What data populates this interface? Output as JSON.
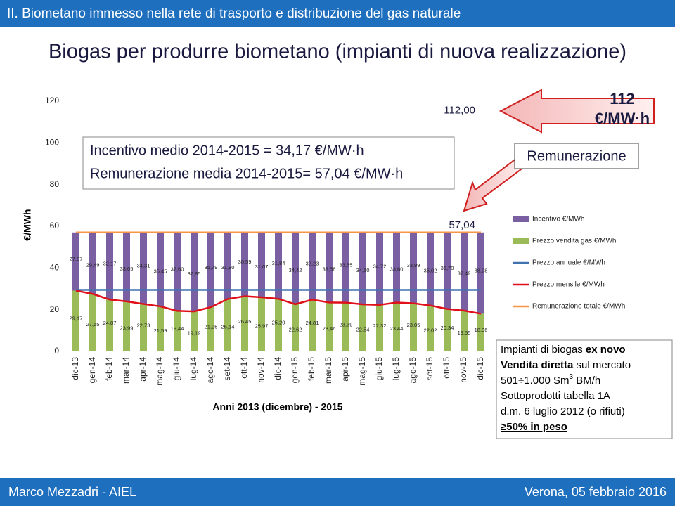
{
  "slide": {
    "header": "II. Biometano immesso nella rete di trasporto e distribuzione del gas naturale",
    "title": "Biogas per produrre biometano (impianti di nuova realizzazione)",
    "footer_left": "Marco Mezzadri - AIEL",
    "footer_right": "Verona, 05 febbraio 2016",
    "callout_value": "112",
    "callout_unit": "€/MW·h",
    "callout_box": "Remunerazione",
    "info_line1": "Incentivo medio 2014-2015 = 34,17 €/MW·h",
    "info_line2": "Remunerazione media 2014-2015= 57,04 €/MW·h",
    "note": [
      [
        "Impianti di biogas ",
        "ex novo"
      ],
      [
        "Vendita diretta",
        " sul mercato"
      ],
      [
        "501÷1.000 Sm",
        "3",
        " BM/h"
      ],
      [
        "Sottoprodotti tabella 1A"
      ],
      [
        "d.m. 6 luglio 2012 (o rifiuti)"
      ],
      [
        "≥50% in peso"
      ]
    ]
  },
  "chart_data": {
    "type": "bar",
    "ylabel": "€/MWh",
    "xlabel": "Anni 2013 (dicembre) - 2015",
    "ylim": [
      0,
      120
    ],
    "yticks": [
      0,
      20,
      40,
      60,
      80,
      100,
      120
    ],
    "categories": [
      "dic-13",
      "gen-14",
      "feb-14",
      "mar-14",
      "apr-14",
      "mag-14",
      "giu-14",
      "lug-14",
      "ago-14",
      "set-14",
      "ott-14",
      "nov-14",
      "dic-14",
      "gen-15",
      "feb-15",
      "mar-15",
      "apr-15",
      "mag-15",
      "giu-15",
      "lug-15",
      "ago-15",
      "set-15",
      "ott-15",
      "nov-15",
      "dic-15"
    ],
    "annotations": [
      {
        "text": "112,00",
        "value": 112
      },
      {
        "text": "57,04",
        "value": 57.04
      }
    ],
    "series": [
      {
        "name": "Incentivo €/MWh",
        "kind": "bar",
        "color": "#7b5fa3",
        "values": [
          27.87,
          29.49,
          32.17,
          33.05,
          34.31,
          35.45,
          37.6,
          37.85,
          35.79,
          31.9,
          30.59,
          31.07,
          31.84,
          34.42,
          32.23,
          33.58,
          33.65,
          34.5,
          34.72,
          33.6,
          33.99,
          35.02,
          36.7,
          37.49,
          38.98
        ],
        "value_labels": [
          "27,87",
          "29,49",
          "32,17",
          "33,05",
          "34,31",
          "35,45",
          "37,60",
          "37,85",
          "35,79",
          "31,90",
          "30,59",
          "31,07",
          "31,84",
          "34,42",
          "32,23",
          "33,58",
          "33,65",
          "34,50",
          "34,72",
          "33,60",
          "33,99",
          "35,02",
          "36,70",
          "37,49",
          "38,98"
        ]
      },
      {
        "name": "Prezzo vendita gas €/MWh",
        "kind": "bar",
        "color": "#9bbb59",
        "values": [
          29.17,
          27.55,
          24.87,
          23.99,
          22.73,
          21.59,
          19.44,
          19.19,
          21.25,
          25.14,
          26.45,
          25.97,
          25.2,
          22.62,
          24.81,
          23.46,
          23.39,
          22.54,
          22.32,
          23.44,
          23.05,
          22.02,
          20.34,
          19.55,
          18.06
        ],
        "value_labels": [
          "29,17",
          "27,55",
          "24,87",
          "23,99",
          "22,73",
          "21,59",
          "19,44",
          "19,19",
          "21,25",
          "25,14",
          "26,45",
          "25,97",
          "25,20",
          "22,62",
          "24,81",
          "23,46",
          "23,39",
          "22,54",
          "22,32",
          "23,44",
          "23,05",
          "22,02",
          "20,34",
          "19,55",
          "18,06"
        ]
      },
      {
        "name": "Prezzo annuale €/MWh",
        "kind": "line",
        "color": "#3f72af",
        "values": [
          29.5,
          29.5,
          29.5,
          29.5,
          29.5,
          29.5,
          29.5,
          29.5,
          29.5,
          29.5,
          29.5,
          29.5,
          29.5,
          29.5,
          29.5,
          29.5,
          29.5,
          29.5,
          29.5,
          29.5,
          29.5,
          29.5,
          29.5,
          29.5,
          29.5
        ]
      },
      {
        "name": "Prezzo mensile €/MWh",
        "kind": "line",
        "color": "#e0101a",
        "values": [
          29.17,
          27.55,
          24.87,
          23.99,
          22.73,
          21.59,
          19.44,
          19.19,
          21.25,
          25.14,
          26.45,
          25.97,
          25.2,
          22.62,
          24.81,
          23.46,
          23.39,
          22.54,
          22.32,
          23.44,
          23.05,
          22.02,
          20.34,
          19.55,
          18.06
        ]
      },
      {
        "name": "Remunerazione totale €/MWh",
        "kind": "line",
        "color": "#f79646",
        "values": [
          57.04,
          57.04,
          57.04,
          57.04,
          57.04,
          57.04,
          57.04,
          57.04,
          57.04,
          57.04,
          57.04,
          57.04,
          57.04,
          57.04,
          57.04,
          57.04,
          57.04,
          57.04,
          57.04,
          57.04,
          57.04,
          57.04,
          57.04,
          57.04,
          57.04
        ]
      }
    ]
  }
}
